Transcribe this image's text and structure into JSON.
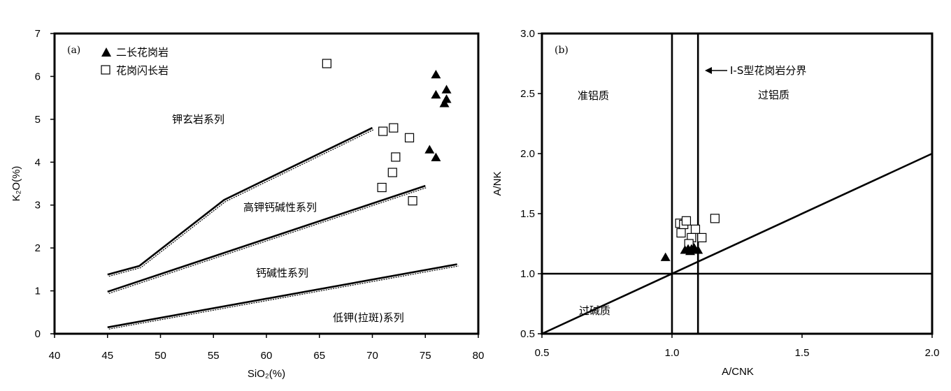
{
  "chart_data": [
    {
      "type": "scatter",
      "panel_label": "(a)",
      "xlabel": "SiO₂(%)",
      "ylabel": "K₂O(%)",
      "xlim": [
        40,
        80
      ],
      "ylim": [
        0,
        7
      ],
      "xticks": [
        40,
        45,
        50,
        55,
        60,
        65,
        70,
        75,
        80
      ],
      "yticks": [
        0,
        1,
        2,
        3,
        4,
        5,
        6,
        7
      ],
      "legend_position": "top-left",
      "series": [
        {
          "name": "二长花岗岩",
          "marker": "filled-triangle",
          "points": [
            [
              76.0,
              6.05
            ],
            [
              76.0,
              5.58
            ],
            [
              77.0,
              5.7
            ],
            [
              77.0,
              5.48
            ],
            [
              76.8,
              5.38
            ],
            [
              75.4,
              4.3
            ],
            [
              76.0,
              4.12
            ]
          ]
        },
        {
          "name": "花岗闪长岩",
          "marker": "open-square",
          "points": [
            [
              65.7,
              6.3
            ],
            [
              71.0,
              4.72
            ],
            [
              72.0,
              4.8
            ],
            [
              73.5,
              4.57
            ],
            [
              72.2,
              4.12
            ],
            [
              71.9,
              3.76
            ],
            [
              70.9,
              3.41
            ],
            [
              73.8,
              3.1
            ]
          ]
        }
      ],
      "boundary_lines": [
        [
          [
            45,
            1.38
          ],
          [
            48,
            1.58
          ],
          [
            56,
            3.12
          ],
          [
            70,
            4.8
          ]
        ],
        [
          [
            45,
            0.98
          ],
          [
            75,
            3.45
          ]
        ],
        [
          [
            45,
            0.15
          ],
          [
            78,
            1.62
          ]
        ]
      ],
      "annotations": [
        "钾玄岩系列",
        "高钾钙碱性系列",
        "钙碱性系列",
        "低钾(拉斑)系列"
      ]
    },
    {
      "type": "scatter",
      "panel_label": "(b)",
      "xlabel": "A/CNK",
      "ylabel": "A/NK",
      "xlim": [
        0.5,
        2.0
      ],
      "ylim": [
        0.5,
        3.0
      ],
      "xticks": [
        "0.5",
        "1.0",
        "1.5",
        "2.0"
      ],
      "yticks": [
        "0.5",
        "1.0",
        "1.5",
        "2.0",
        "2.5",
        "3.0"
      ],
      "series": [
        {
          "name": "二长花岗岩",
          "marker": "filled-triangle",
          "points": [
            [
              0.975,
              1.14
            ],
            [
              1.05,
              1.2
            ],
            [
              1.062,
              1.21
            ],
            [
              1.075,
              1.21
            ],
            [
              1.085,
              1.22
            ],
            [
              1.1,
              1.2
            ],
            [
              1.07,
              1.19
            ]
          ]
        },
        {
          "name": "花岗闪长岩",
          "marker": "open-square",
          "points": [
            [
              1.03,
              1.42
            ],
            [
              1.045,
              1.41
            ],
            [
              1.055,
              1.44
            ],
            [
              1.035,
              1.34
            ],
            [
              1.09,
              1.37
            ],
            [
              1.075,
              1.3
            ],
            [
              1.115,
              1.3
            ],
            [
              1.065,
              1.25
            ],
            [
              1.165,
              1.46
            ]
          ]
        }
      ],
      "reference_lines": {
        "vertical": [
          1.0,
          1.1
        ],
        "horizontal": [
          1.0
        ],
        "diagonal": [
          [
            0.5,
            0.5
          ],
          [
            2.0,
            2.0
          ]
        ]
      },
      "annotations": [
        "准铝质",
        "过铝质",
        "过碱质",
        "I-S型花岗岩分界"
      ]
    }
  ]
}
